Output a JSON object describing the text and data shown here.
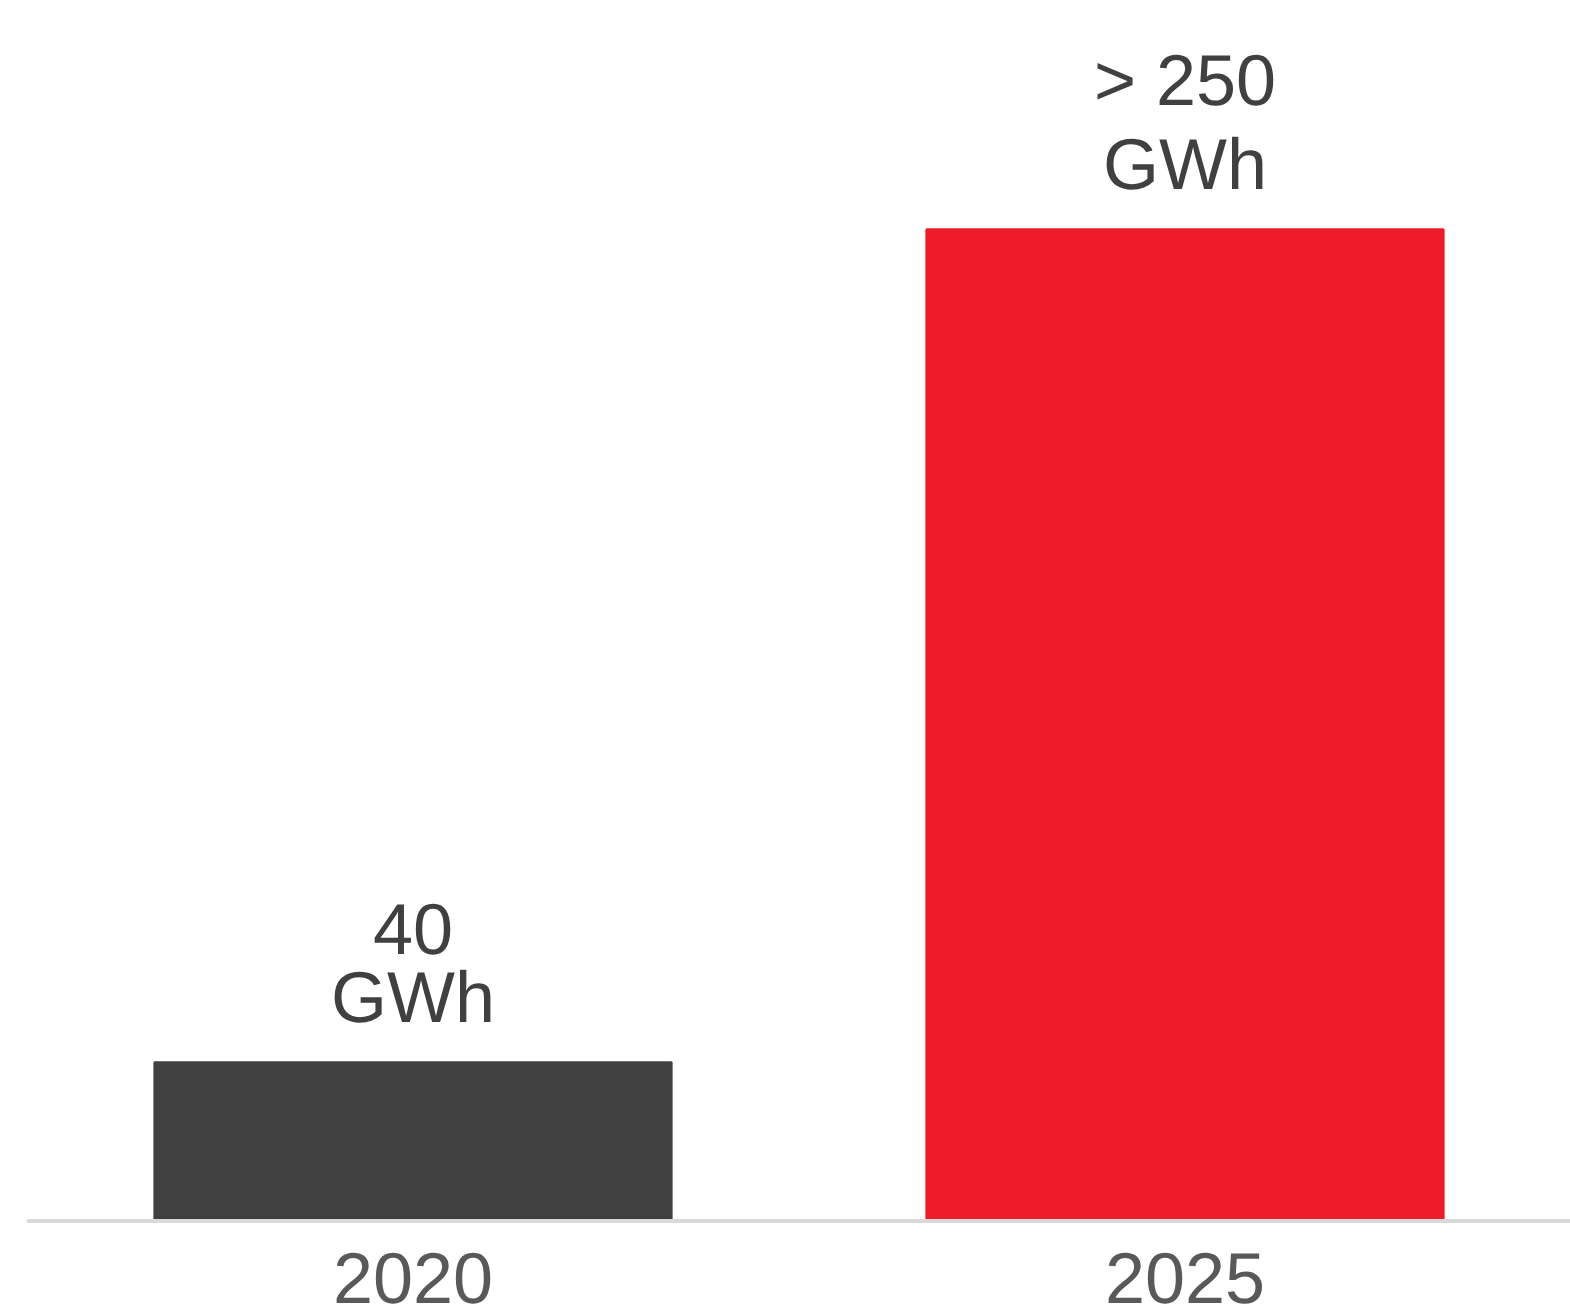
{
  "chart_data": {
    "type": "bar",
    "categories": [
      "2020",
      "2025"
    ],
    "values": [
      40,
      250
    ],
    "colors": [
      "#404040",
      "#ee1c2a"
    ],
    "value_labels": [
      "40 GWh",
      "> 250 GWh"
    ],
    "grid": false
  }
}
